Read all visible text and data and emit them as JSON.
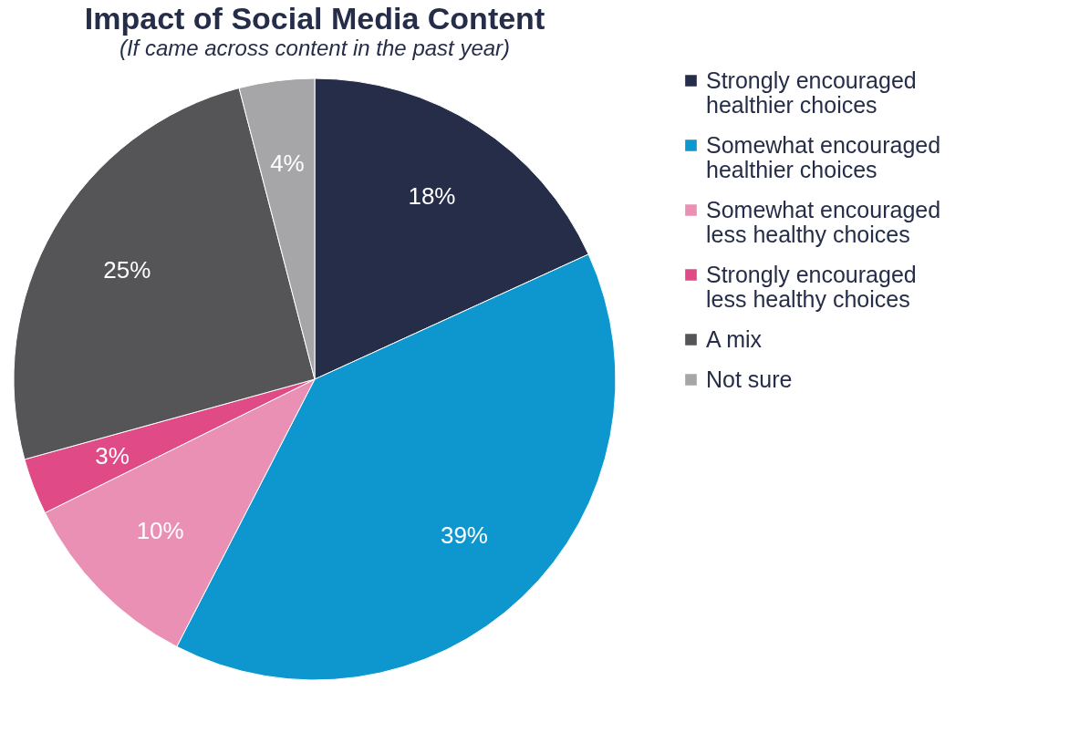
{
  "chart_data": {
    "type": "pie",
    "title": "Impact of Social Media Content",
    "subtitle": "(If came across content in the past year)",
    "categories": [
      "Strongly encouraged healthier choices",
      "Somewhat encouraged healthier choices",
      "Somewhat encouraged less healthy choices",
      "Strongly encouraged less healthy choices",
      "A mix",
      "Not sure"
    ],
    "values": [
      18,
      39,
      10,
      3,
      25,
      4
    ],
    "colors": [
      "#252d48",
      "#0e97cf",
      "#eb90b5",
      "#e04a86",
      "#555557",
      "#a6a6a8"
    ],
    "value_labels": [
      "18%",
      "39%",
      "10%",
      "3%",
      "25%",
      "4%"
    ],
    "legend": "right"
  }
}
